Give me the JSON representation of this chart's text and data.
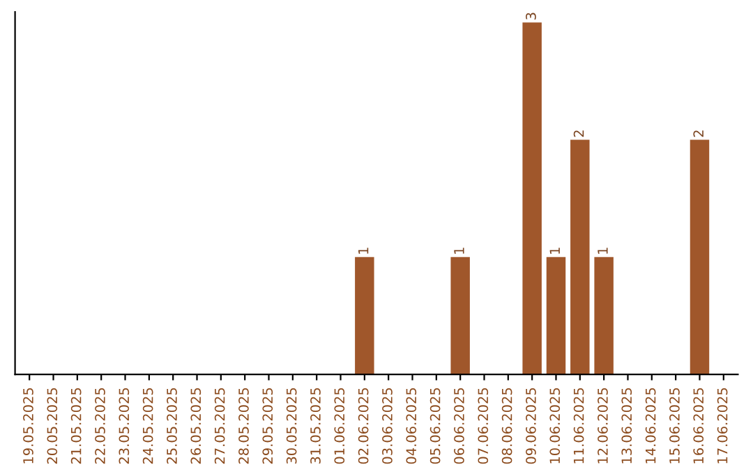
{
  "chart_data": {
    "type": "bar",
    "categories": [
      "19.05.2025",
      "20.05.2025",
      "21.05.2025",
      "22.05.2025",
      "23.05.2025",
      "24.05.2025",
      "25.05.2025",
      "26.05.2025",
      "27.05.2025",
      "28.05.2025",
      "29.05.2025",
      "30.05.2025",
      "31.05.2025",
      "01.06.2025",
      "02.06.2025",
      "03.06.2025",
      "04.06.2025",
      "05.06.2025",
      "06.06.2025",
      "07.06.2025",
      "08.06.2025",
      "09.06.2025",
      "10.06.2025",
      "11.06.2025",
      "12.06.2025",
      "13.06.2025",
      "14.06.2025",
      "15.06.2025",
      "16.06.2025",
      "17.06.2025"
    ],
    "values": [
      null,
      null,
      null,
      null,
      null,
      null,
      null,
      null,
      null,
      null,
      null,
      null,
      null,
      null,
      1,
      null,
      null,
      null,
      1,
      null,
      null,
      3,
      1,
      2,
      1,
      null,
      null,
      null,
      2,
      null
    ],
    "data_labels": true,
    "color": "#a0572b",
    "tick_labels": "x",
    "grid": false
  }
}
